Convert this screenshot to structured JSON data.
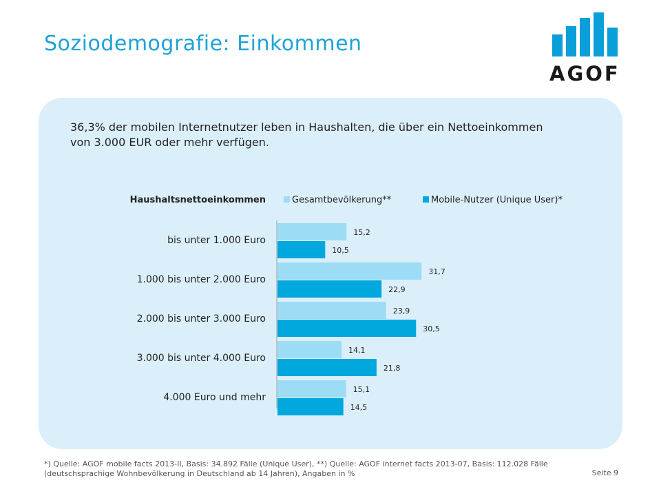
{
  "slide": {
    "title": "Soziodemografie: Einkommen",
    "headline": "36,3% der mobilen Internetnutzer leben in Haushalten, die über ein Nettoeinkommen von 3.000 EUR oder mehr verfügen.",
    "footnote": "*) Quelle: AGOF mobile facts 2013-II, Basis: 34.892 Fälle (Unique User), **) Quelle: AGOF internet facts 2013-07, Basis: 112.028 Fälle (deutschsprachige Wohnbevölkerung in Deutschland ab 14 Jahren), Angaben in %",
    "page_number": "Seite 9",
    "logo_text": "AGOF"
  },
  "colors": {
    "title": "#1ea3d6",
    "panel": "#dbeffa",
    "series_light": "#9ddcf5",
    "series_dark": "#00a8de",
    "logo": "#0a9fd9"
  },
  "chart_data": {
    "type": "bar",
    "orientation": "horizontal",
    "title": "Haushaltsnettoeinkommen",
    "categories": [
      "bis unter 1.000 Euro",
      "1.000 bis unter 2.000 Euro",
      "2.000 bis unter 3.000 Euro",
      "3.000 bis unter 4.000 Euro",
      "4.000 Euro und mehr"
    ],
    "series": [
      {
        "name": "Gesamtbevölkerung**",
        "values": [
          15.2,
          31.7,
          23.9,
          14.1,
          15.1
        ],
        "labels": [
          "15,2",
          "31,7",
          "23,9",
          "14,1",
          "15,1"
        ],
        "color": "#9ddcf5"
      },
      {
        "name": "Mobile-Nutzer (Unique User)*",
        "values": [
          10.5,
          22.9,
          30.5,
          21.8,
          14.5
        ],
        "labels": [
          "10,5",
          "22,9",
          "30,5",
          "21,8",
          "14,5"
        ],
        "color": "#00a8de"
      }
    ],
    "legend_position": "top",
    "grid": false,
    "data_labels": true
  }
}
